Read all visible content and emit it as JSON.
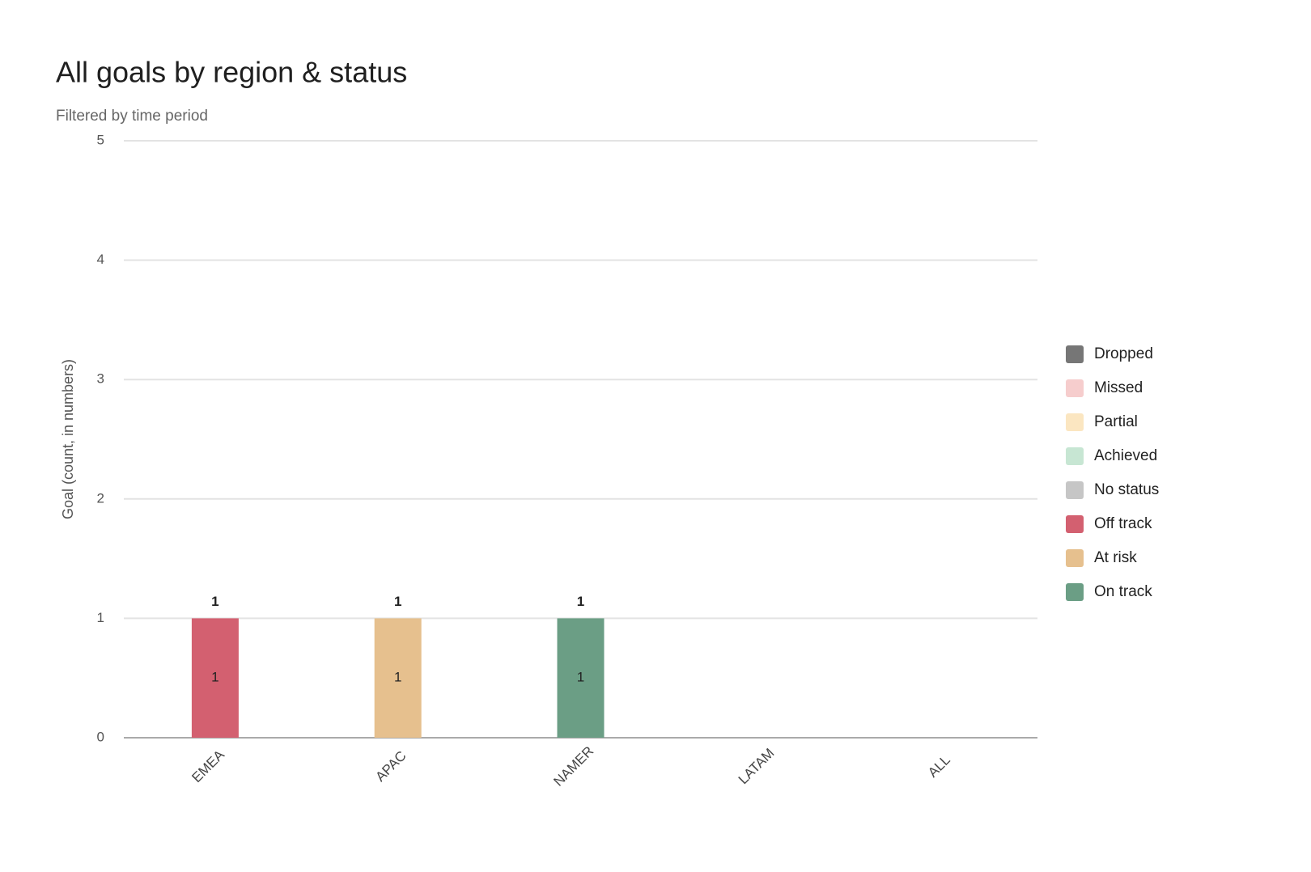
{
  "chart_data": {
    "type": "stacked-bar",
    "title": "All goals by region & status",
    "subtitle": "Filtered by time period",
    "y_label": "Goal (count, in numbers)",
    "categories": [
      "EMEA",
      "APAC",
      "NAMER",
      "LATAM",
      "ALL"
    ],
    "series": [
      {
        "name": "Dropped",
        "color": "#767676",
        "values": [
          null,
          null,
          null,
          null,
          null
        ]
      },
      {
        "name": "Missed",
        "color": "#f6cdcd",
        "values": [
          null,
          null,
          null,
          null,
          null
        ]
      },
      {
        "name": "Partial",
        "color": "#fbe6c1",
        "values": [
          null,
          null,
          null,
          null,
          null
        ]
      },
      {
        "name": "Achieved",
        "color": "#c7e6d3",
        "values": [
          null,
          null,
          null,
          null,
          null
        ]
      },
      {
        "name": "No status",
        "color": "#c6c6c6",
        "values": [
          null,
          null,
          null,
          null,
          null
        ]
      },
      {
        "name": "Off track",
        "color": "#d36070",
        "values": [
          1,
          null,
          null,
          null,
          null
        ]
      },
      {
        "name": "At risk",
        "color": "#e6c08e",
        "values": [
          null,
          1,
          null,
          null,
          null
        ]
      },
      {
        "name": "On track",
        "color": "#6b9e85",
        "values": [
          null,
          null,
          1,
          null,
          null
        ]
      }
    ],
    "totals": [
      1,
      1,
      1,
      null,
      null
    ],
    "ylim": [
      0,
      5
    ],
    "yticks": [
      0,
      1,
      2,
      3,
      4,
      5
    ],
    "grid": true,
    "legend": "right"
  }
}
